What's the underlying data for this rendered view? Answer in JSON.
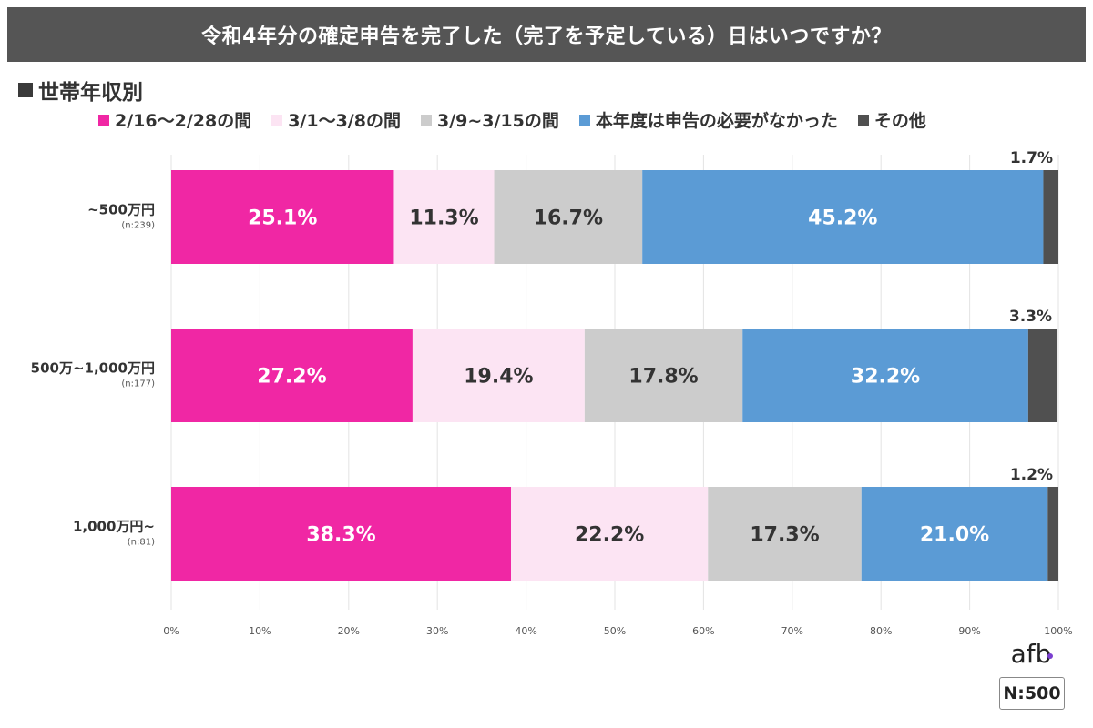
{
  "title": "令和4年分の確定申告を完了した（完了を予定している）日はいつですか？",
  "subtitle": "世帯年収別",
  "sample_size": "N:500",
  "logo_text": "afb",
  "chart_data": {
    "type": "bar",
    "orientation": "horizontal",
    "stacked": true,
    "categories": [
      "~500万円",
      "500万~1,000万円",
      "1,000万円~"
    ],
    "category_n": [
      "(n:239)",
      "(n:177)",
      "(n:81)"
    ],
    "series": [
      {
        "name": "2/16～2/28の間",
        "color": "#f027a4",
        "label_color": "#ffffff",
        "values": [
          25.1,
          27.2,
          38.3
        ]
      },
      {
        "name": "3/1～3/8の間",
        "color": "#fce4f3",
        "label_color": "#333333",
        "values": [
          11.3,
          19.4,
          22.2
        ]
      },
      {
        "name": "3/9~3/15の間",
        "color": "#cccccc",
        "label_color": "#333333",
        "values": [
          16.7,
          17.8,
          17.3
        ]
      },
      {
        "name": "本年度は申告の必要がなかった",
        "color": "#5b9bd5",
        "label_color": "#ffffff",
        "values": [
          45.2,
          32.2,
          21.0
        ]
      },
      {
        "name": "その他",
        "color": "#505050",
        "label_color": "#333333",
        "values": [
          1.7,
          3.3,
          1.2
        ]
      }
    ],
    "value_labels": [
      [
        "25.1%",
        "11.3%",
        "16.7%",
        "45.2%",
        "1.7%"
      ],
      [
        "27.2%",
        "19.4%",
        "17.8%",
        "32.2%",
        "3.3%"
      ],
      [
        "38.3%",
        "22.2%",
        "17.3%",
        "21.0%",
        "1.2%"
      ]
    ],
    "x_ticks": [
      "0%",
      "10%",
      "20%",
      "30%",
      "40%",
      "50%",
      "60%",
      "70%",
      "80%",
      "90%",
      "100%"
    ],
    "xlim": [
      0,
      100
    ],
    "grid": true,
    "legend_position": "top"
  }
}
